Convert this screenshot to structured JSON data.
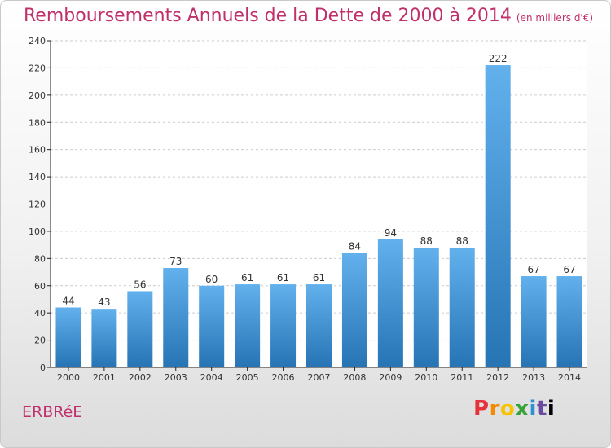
{
  "title": "Remboursements Annuels de la Dette de 2000 à 2014",
  "unit_note": "(en milliers d'€)",
  "commune": "ERBRéE",
  "logo": {
    "letters": [
      "P",
      "r",
      "o",
      "x",
      "i",
      "t",
      "i"
    ]
  },
  "colors": {
    "title": "#c0306a",
    "bar_top": "#62b0ec",
    "bar_bottom": "#2774b5",
    "axis": "#222222",
    "grid": "#cccccc"
  },
  "chart_data": {
    "type": "bar",
    "title": "Remboursements Annuels de la Dette de 2000 à 2014",
    "xlabel": "",
    "ylabel": "",
    "categories": [
      "2000",
      "2001",
      "2002",
      "2003",
      "2004",
      "2005",
      "2006",
      "2007",
      "2008",
      "2009",
      "2010",
      "2011",
      "2012",
      "2013",
      "2014"
    ],
    "values": [
      44,
      43,
      56,
      73,
      60,
      61,
      61,
      61,
      84,
      94,
      88,
      88,
      222,
      67,
      67
    ],
    "ylim": [
      0,
      240
    ],
    "yticks": [
      0,
      20,
      40,
      60,
      80,
      100,
      120,
      140,
      160,
      180,
      200,
      220,
      240
    ],
    "grid": true,
    "data_labels": true
  }
}
